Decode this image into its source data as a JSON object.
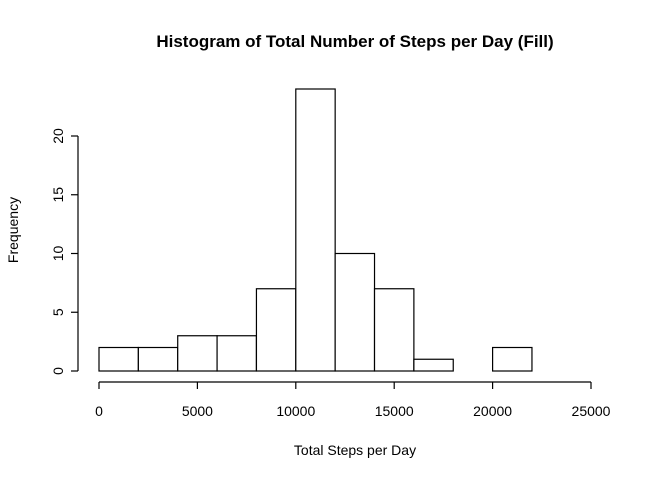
{
  "chart_data": {
    "type": "bar",
    "title": "Histogram of Total Number of Steps per Day (Fill)",
    "xlabel": "Total Steps per Day",
    "ylabel": "Frequency",
    "bins": [
      {
        "start": 0,
        "end": 2000,
        "count": 2
      },
      {
        "start": 2000,
        "end": 4000,
        "count": 2
      },
      {
        "start": 4000,
        "end": 6000,
        "count": 3
      },
      {
        "start": 6000,
        "end": 8000,
        "count": 3
      },
      {
        "start": 8000,
        "end": 10000,
        "count": 7
      },
      {
        "start": 10000,
        "end": 12000,
        "count": 24
      },
      {
        "start": 12000,
        "end": 14000,
        "count": 10
      },
      {
        "start": 14000,
        "end": 16000,
        "count": 7
      },
      {
        "start": 16000,
        "end": 18000,
        "count": 1
      },
      {
        "start": 18000,
        "end": 20000,
        "count": 0
      },
      {
        "start": 20000,
        "end": 22000,
        "count": 2
      },
      {
        "start": 22000,
        "end": 24000,
        "count": 0
      },
      {
        "start": 24000,
        "end": 26000,
        "count": 0
      }
    ],
    "xlim": [
      0,
      26000
    ],
    "ylim": [
      0,
      25
    ],
    "xticks": [
      "0",
      "5000",
      "10000",
      "15000",
      "20000",
      "25000"
    ],
    "xtick_values": [
      0,
      5000,
      10000,
      15000,
      20000,
      25000
    ],
    "yticks": [
      "0",
      "5",
      "10",
      "15",
      "20"
    ],
    "ytick_values": [
      0,
      5,
      10,
      15,
      20
    ],
    "grid": false,
    "colors": {
      "bar_fill": "#ffffff",
      "bar_stroke": "#000000"
    }
  }
}
